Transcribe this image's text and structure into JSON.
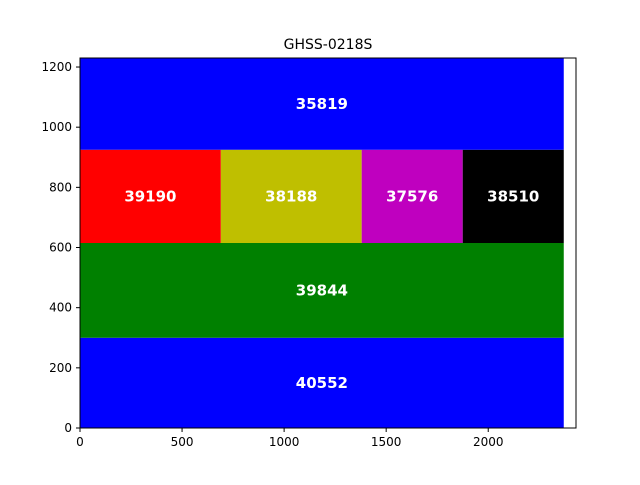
{
  "chart_data": {
    "type": "treemap",
    "title": "GHSS-0218S",
    "xlabel": "",
    "ylabel": "",
    "xlim": [
      0,
      2430
    ],
    "ylim": [
      0,
      1230
    ],
    "xticks": [
      0,
      500,
      1000,
      1500,
      2000
    ],
    "yticks": [
      0,
      200,
      400,
      600,
      800,
      1000,
      1200
    ],
    "grid": false,
    "blocks": [
      {
        "label": "40552",
        "value": 40552,
        "x0": 0,
        "x1": 2370,
        "y0": 0,
        "y1": 300,
        "color": "#0000ff"
      },
      {
        "label": "39844",
        "value": 39844,
        "x0": 0,
        "x1": 2370,
        "y0": 300,
        "y1": 615,
        "color": "#008000"
      },
      {
        "label": "39190",
        "value": 39190,
        "x0": 0,
        "x1": 690,
        "y0": 615,
        "y1": 925,
        "color": "#ff0000"
      },
      {
        "label": "38188",
        "value": 38188,
        "x0": 690,
        "x1": 1380,
        "y0": 615,
        "y1": 925,
        "color": "#bfbf00"
      },
      {
        "label": "37576",
        "value": 37576,
        "x0": 1380,
        "x1": 1875,
        "y0": 615,
        "y1": 925,
        "color": "#bf00bf"
      },
      {
        "label": "38510",
        "value": 38510,
        "x0": 1875,
        "x1": 2370,
        "y0": 615,
        "y1": 925,
        "color": "#000000"
      },
      {
        "label": "35819",
        "value": 35819,
        "x0": 0,
        "x1": 2370,
        "y0": 925,
        "y1": 1230,
        "color": "#0000ff"
      }
    ]
  }
}
